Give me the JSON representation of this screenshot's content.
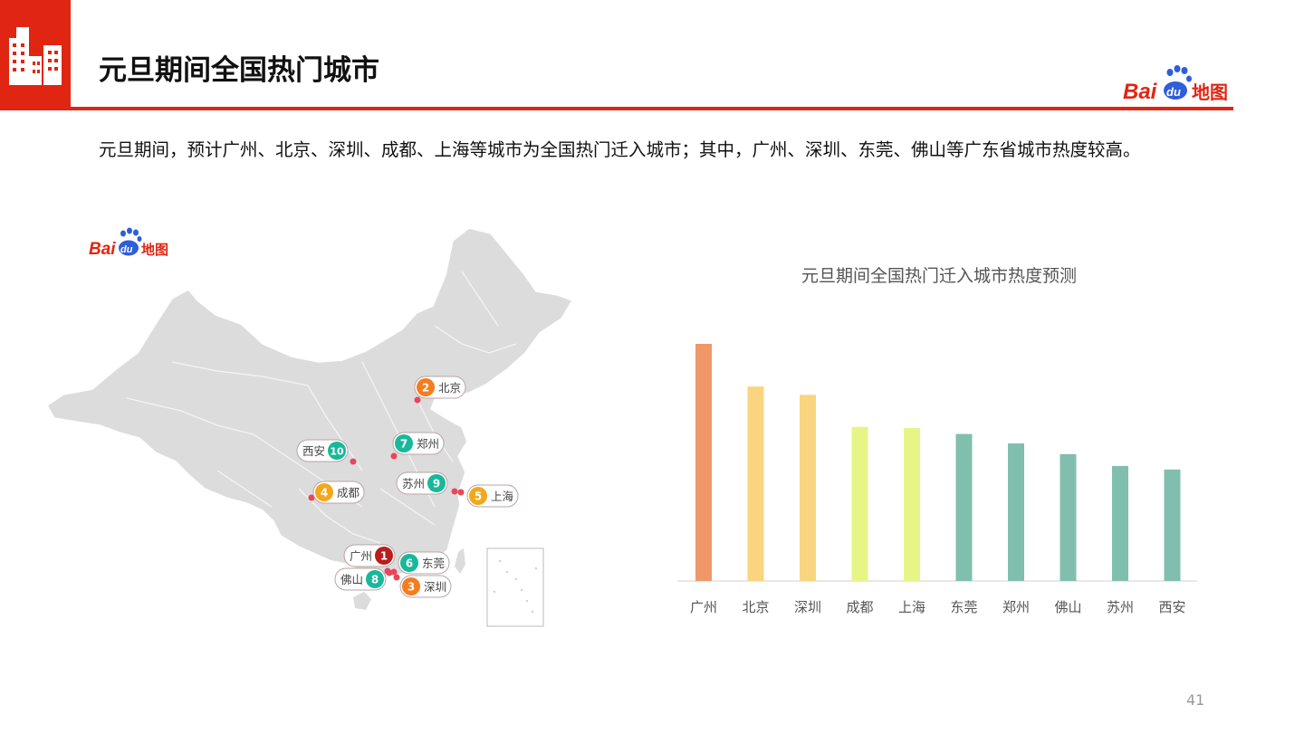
{
  "header": {
    "title": "元旦期间全国热门城市",
    "accent_color": "#e02512",
    "icon": "city-buildings-icon"
  },
  "brand": {
    "bai": "Bai",
    "du": "du",
    "map": "地图",
    "bai_color": "#e02512",
    "du_color": "#2e5ed9"
  },
  "summary": "元旦期间，预计广州、北京、深圳、成都、上海等城市为全国热门迁入城市；其中，广州、深圳、东莞、佛山等广东省城市热度较高。",
  "map": {
    "markers": [
      {
        "rank": "1",
        "city": "广州",
        "color": "#b81e1e"
      },
      {
        "rank": "2",
        "city": "北京",
        "color": "#f57c1f"
      },
      {
        "rank": "3",
        "city": "深圳",
        "color": "#f57c1f"
      },
      {
        "rank": "4",
        "city": "成都",
        "color": "#f2a81d"
      },
      {
        "rank": "5",
        "city": "上海",
        "color": "#f2a81d"
      },
      {
        "rank": "6",
        "city": "东莞",
        "color": "#18b89a"
      },
      {
        "rank": "7",
        "city": "郑州",
        "color": "#18b89a"
      },
      {
        "rank": "8",
        "city": "佛山",
        "color": "#18b89a"
      },
      {
        "rank": "9",
        "city": "苏州",
        "color": "#18b89a"
      },
      {
        "rank": "10",
        "city": "西安",
        "color": "#18b89a"
      }
    ]
  },
  "chart_data": {
    "type": "bar",
    "title": "元旦期间全国热门迁入城市热度预测",
    "categories": [
      "广州",
      "北京",
      "深圳",
      "成都",
      "上海",
      "东莞",
      "郑州",
      "佛山",
      "苏州",
      "西安"
    ],
    "values": [
      100,
      82,
      78.5,
      65,
      64.5,
      62,
      58,
      53.5,
      48.5,
      47
    ],
    "colors": [
      "#f0976a",
      "#f9d57f",
      "#f9d57f",
      "#e7f587",
      "#e7f587",
      "#80bfad",
      "#80bfad",
      "#80bfad",
      "#80bfad",
      "#80bfad"
    ],
    "ylim": [
      0,
      100
    ],
    "grid": false,
    "xlabel": "",
    "ylabel": ""
  },
  "page_number": "41"
}
